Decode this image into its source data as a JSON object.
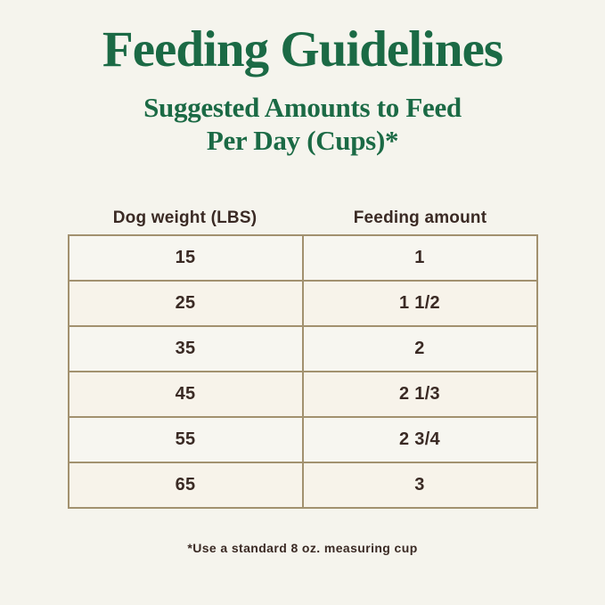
{
  "title": "Feeding Guidelines",
  "subtitle": {
    "line1": "Suggested Amounts to Feed",
    "line2": "Per Day (Cups)*"
  },
  "table": {
    "columns": [
      "Dog weight (LBS)",
      "Feeding amount"
    ],
    "rows": [
      [
        "15",
        "1"
      ],
      [
        "25",
        "1 1/2"
      ],
      [
        "35",
        "2"
      ],
      [
        "45",
        "2 1/3"
      ],
      [
        "55",
        "2 3/4"
      ],
      [
        "65",
        "3"
      ]
    ]
  },
  "footnote": "*Use a standard 8 oz. measuring cup",
  "colors": {
    "title_green": "#1b6a45",
    "text_brown": "#3a2a24",
    "border_tan": "#a2916f",
    "background_cream": "#f5f4ed"
  },
  "chart_data": {
    "type": "table",
    "title": "Feeding Guidelines",
    "subtitle": "Suggested Amounts to Feed Per Day (Cups)*",
    "columns": [
      "Dog weight (LBS)",
      "Feeding amount"
    ],
    "rows": [
      {
        "dog_weight_lbs": 15,
        "feeding_amount_cups": "1"
      },
      {
        "dog_weight_lbs": 25,
        "feeding_amount_cups": "1 1/2"
      },
      {
        "dog_weight_lbs": 35,
        "feeding_amount_cups": "2"
      },
      {
        "dog_weight_lbs": 45,
        "feeding_amount_cups": "2 1/3"
      },
      {
        "dog_weight_lbs": 55,
        "feeding_amount_cups": "2 3/4"
      },
      {
        "dog_weight_lbs": 65,
        "feeding_amount_cups": "3"
      }
    ],
    "footnote": "*Use a standard 8 oz. measuring cup",
    "layout": {
      "grid": "full-borders",
      "header_outside_table": true
    }
  }
}
